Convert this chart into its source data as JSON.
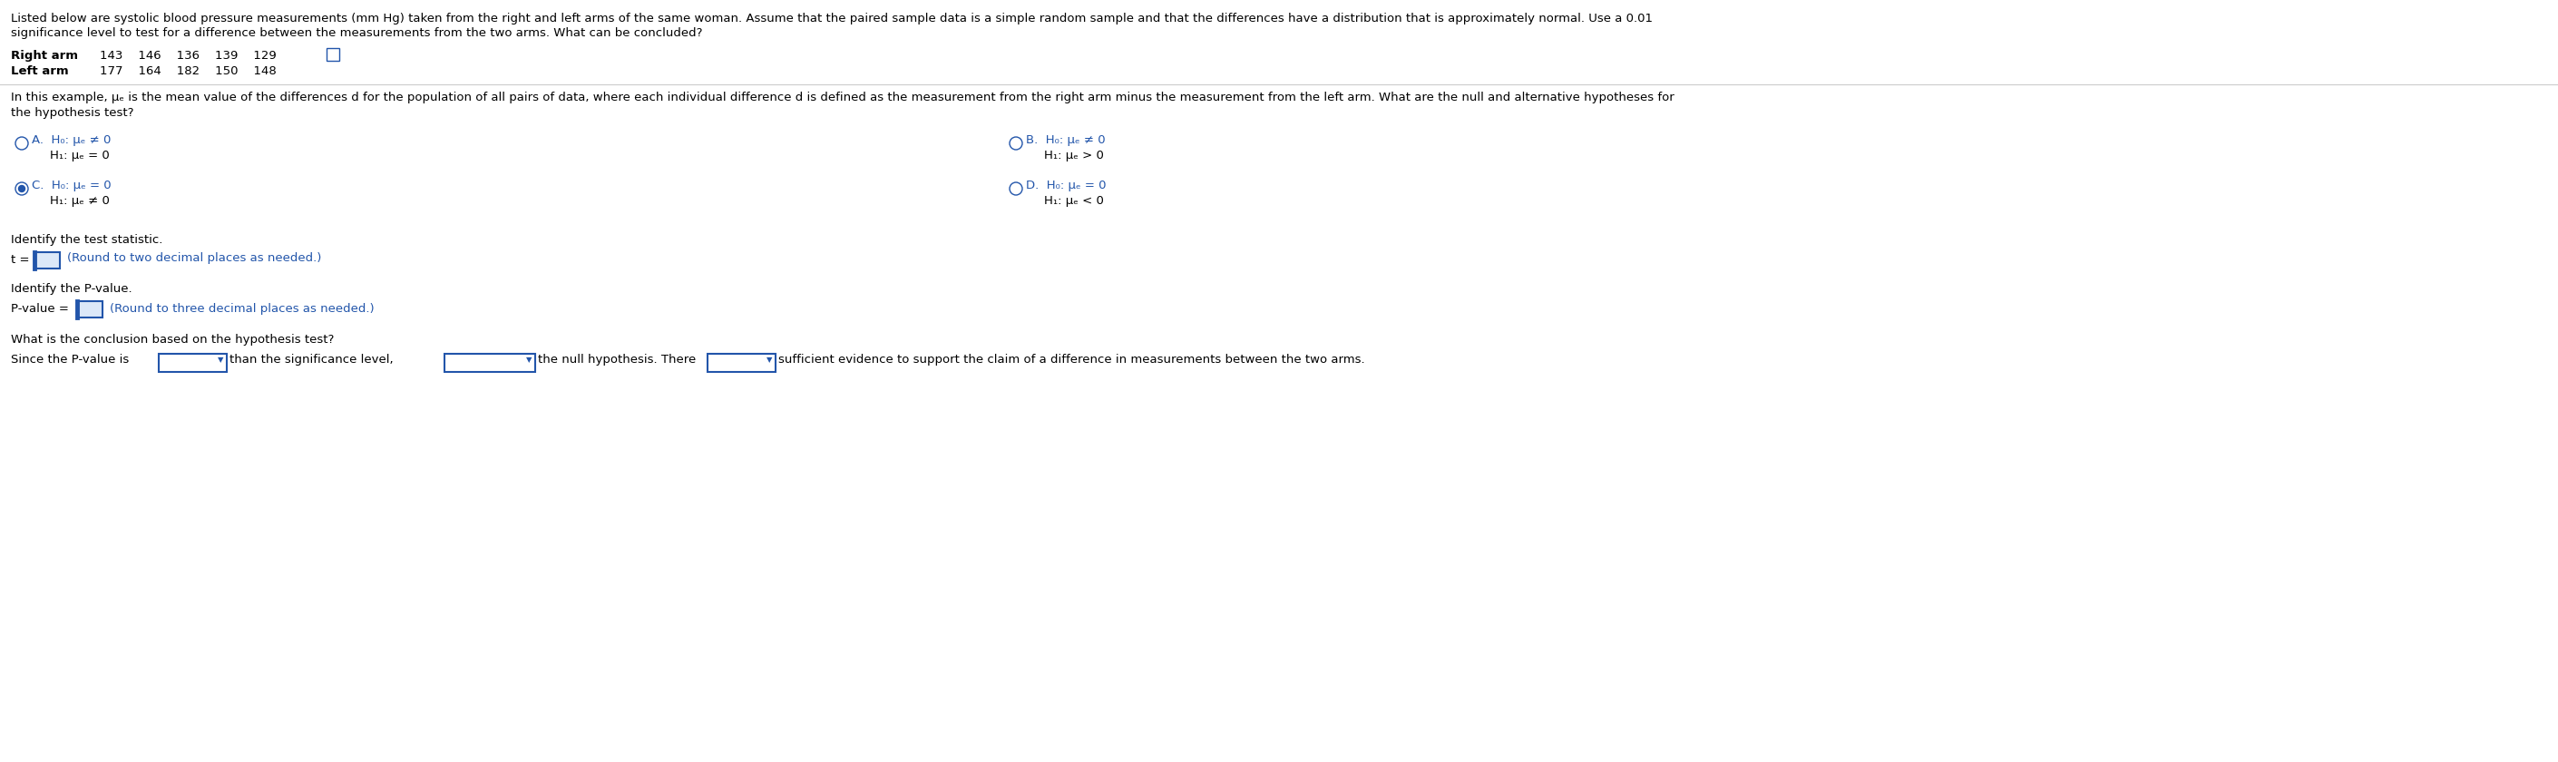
{
  "bg_color": "#ffffff",
  "title_text": "Listed below are systolic blood pressure measurements (mm Hg) taken from the right and left arms of the same woman. Assume that the paired sample data is a simple random sample and that the differences have a distribution that is approximately normal. Use a 0.01",
  "title_text2": "significance level to test for a difference between the measurements from the two arms. What can be concluded?",
  "right_arm_label": "Right arm",
  "left_arm_label": "Left arm",
  "right_arm_values": "143    146    136    139    129",
  "left_arm_values": "177    164    182    150    148",
  "question_text": "In this example, μₑ is the mean value of the differences d for the population of all pairs of data, where each individual difference d is defined as the measurement from the right arm minus the measurement from the left arm. What are the null and alternative hypotheses for",
  "question_text2": "the hypothesis test?",
  "identify_stat": "Identify the test statistic.",
  "t_hint": "(Round to two decimal places as needed.)",
  "identify_pval": "Identify the P-value.",
  "pval_hint": "(Round to three decimal places as needed.)",
  "conclusion_q": "What is the conclusion based on the hypothesis test?",
  "selected_C": true,
  "radio_color": "#2255aa",
  "text_color": "#000000",
  "hint_color": "#2255aa",
  "box_color": "#2255aa",
  "body_fontsize": 9.5,
  "label_fontsize": 9.5
}
